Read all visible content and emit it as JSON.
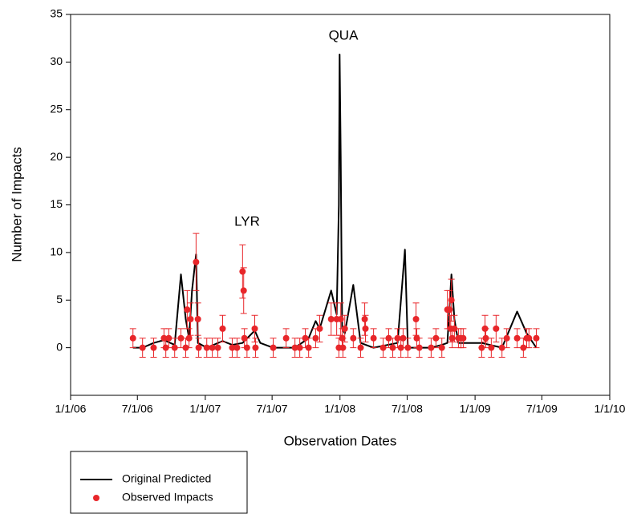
{
  "chart_data": {
    "type": "line",
    "x_label": "Observation Dates",
    "y_label": "Number of Impacts",
    "annotations": [
      "LYR",
      "QUA"
    ],
    "xlim": [
      "1/1/06",
      "1/1/10"
    ],
    "xticks": [
      "1/1/06",
      "7/1/06",
      "1/1/07",
      "7/1/07",
      "1/1/08",
      "7/1/08",
      "1/1/09",
      "7/1/09",
      "1/1/10"
    ],
    "ylim": [
      -5,
      35
    ],
    "yticks": [
      0,
      5,
      10,
      15,
      20,
      25,
      30,
      35
    ],
    "series": [
      {
        "name": "Original Predicted",
        "type": "line",
        "color": "#000000",
        "x": [
          "6/19/06",
          "7/15/06",
          "8/14/06",
          "9/11/06",
          "10/10/06",
          "10/27/06",
          "11/9/06",
          "11/18/06",
          "11/26/06",
          "12/7/06",
          "12/12/06",
          "1/5/07",
          "2/17/07",
          "3/15/07",
          "4/12/07",
          "5/15/07",
          "5/30/07",
          "7/4/07",
          "9/1/07",
          "10/8/07",
          "10/27/07",
          "11/7/07",
          "12/8/07",
          "12/23/07",
          "12/29/07",
          "12/31/07",
          "1/3/08",
          "1/5/08",
          "1/7/08",
          "1/14/08",
          "2/6/08",
          "2/26/08",
          "4/1/08",
          "6/5/08",
          "6/25/08",
          "7/3/08",
          "9/4/08",
          "10/3/08",
          "10/18/08",
          "10/29/08",
          "11/6/08",
          "11/17/08",
          "1/19/09",
          "3/15/09",
          "4/25/09",
          "5/21/09",
          "6/16/09"
        ],
        "values": [
          0,
          0,
          0.5,
          0.8,
          0.3,
          7.7,
          3,
          1,
          6,
          9.8,
          0.5,
          0,
          0.7,
          0.3,
          0.5,
          1.8,
          0.5,
          0,
          0,
          1,
          2.8,
          2,
          6,
          3.5,
          15,
          30.8,
          20,
          10,
          2,
          1.5,
          6.6,
          0.5,
          0,
          0.5,
          10.3,
          0,
          0,
          0.3,
          0.5,
          7.7,
          3,
          0.5,
          0.5,
          0,
          3.8,
          1.5,
          0
        ]
      },
      {
        "name": "Observed Impacts",
        "type": "scatter",
        "color": "#e8262a",
        "x": [
          "6/19/06",
          "7/15/06",
          "8/14/06",
          "9/11/06",
          "9/16/06",
          "9/24/06",
          "10/10/06",
          "10/27/06",
          "11/9/06",
          "11/13/06",
          "11/18/06",
          "11/22/06",
          "12/7/06",
          "12/12/06",
          "12/14/06",
          "1/5/07",
          "1/20/07",
          "2/4/07",
          "2/17/07",
          "3/15/07",
          "3/28/07",
          "4/12/07",
          "4/15/07",
          "4/17/07",
          "4/24/07",
          "5/15/07",
          "5/17/07",
          "7/4/07",
          "8/8/07",
          "9/1/07",
          "9/14/07",
          "9/29/07",
          "10/8/07",
          "10/27/07",
          "11/7/07",
          "12/8/07",
          "12/23/07",
          "12/29/07",
          "1/3/08",
          "1/7/08",
          "1/9/08",
          "1/14/08",
          "2/6/08",
          "2/26/08",
          "3/8/08",
          "3/10/08",
          "4/1/08",
          "4/27/08",
          "5/12/08",
          "5/23/08",
          "6/5/08",
          "6/14/08",
          "6/20/08",
          "7/3/08",
          "7/25/08",
          "7/27/08",
          "8/3/08",
          "9/4/08",
          "9/17/08",
          "10/3/08",
          "10/18/08",
          "10/24/08",
          "10/27/08",
          "10/29/08",
          "10/31/08",
          "11/6/08",
          "11/17/08",
          "11/24/08",
          "11/30/08",
          "1/19/09",
          "1/28/09",
          "1/30/09",
          "2/14/09",
          "2/27/09",
          "3/15/09",
          "3/28/09",
          "4/25/09",
          "5/12/09",
          "5/21/09",
          "5/27/09",
          "6/16/09"
        ],
        "values": [
          1,
          0,
          0,
          1,
          0,
          1,
          0,
          1,
          0,
          4,
          1,
          3,
          9,
          3,
          0,
          0,
          0,
          0,
          2,
          0,
          0,
          8,
          6,
          1,
          0,
          2,
          0,
          0,
          1,
          0,
          0,
          1,
          0,
          1,
          2,
          3,
          3,
          0,
          3,
          1,
          0,
          2,
          1,
          0,
          3,
          2,
          1,
          0,
          1,
          0,
          1,
          0,
          1,
          0,
          3,
          1,
          0,
          0,
          1,
          0,
          4,
          4,
          2,
          5,
          1,
          2,
          1,
          1,
          1,
          0,
          2,
          1,
          0,
          2,
          0,
          1,
          1,
          0,
          1,
          1,
          1
        ],
        "errors": [
          1,
          1,
          1,
          1,
          1,
          1,
          1,
          1,
          1,
          2,
          1,
          1.7,
          3,
          1.7,
          1,
          1,
          1,
          1,
          1.4,
          1,
          1,
          2.8,
          2.4,
          1,
          1,
          1.4,
          1,
          1,
          1,
          1,
          1,
          1,
          1,
          1,
          1.4,
          1.7,
          1.7,
          1,
          1.7,
          1,
          1,
          1.4,
          1,
          1,
          1.7,
          1.4,
          1,
          1,
          1,
          1,
          1,
          1,
          1,
          1,
          1.7,
          1,
          1,
          1,
          1,
          1,
          2,
          2,
          1.4,
          2.2,
          1,
          1.4,
          1,
          1,
          1,
          1,
          1.4,
          1,
          1,
          1.4,
          1,
          1,
          1,
          1,
          1,
          1,
          1
        ]
      }
    ]
  }
}
